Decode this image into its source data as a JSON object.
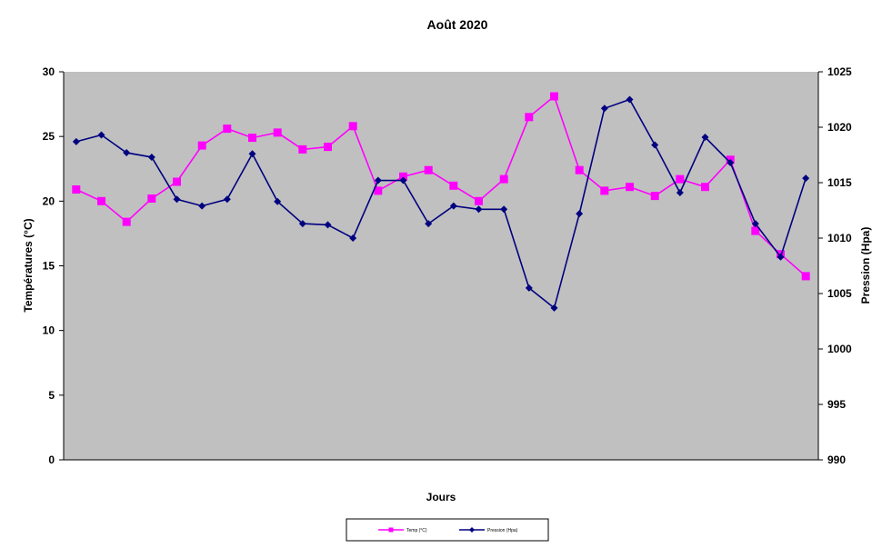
{
  "chart_data": {
    "type": "line",
    "title": "Août 2020",
    "xlabel": "Jours",
    "ylabel_left": "Températures (°C)",
    "ylabel_right": "Pression (Hpa)",
    "ylim_left": [
      0,
      30
    ],
    "ylim_right": [
      990,
      1025
    ],
    "yticks_left": [
      "0",
      "5",
      "10",
      "15",
      "20",
      "25",
      "30"
    ],
    "yticks_right": [
      "990",
      "995",
      "1000",
      "1005",
      "1010",
      "1015",
      "1020",
      "1025"
    ],
    "grid": false,
    "legend_position": "bottom",
    "plot_background": "#c0c0c0",
    "series": [
      {
        "name": "Temp (°C)",
        "axis": "left",
        "color": "#ff00ff",
        "marker": "square",
        "values": [
          20.9,
          20.0,
          18.4,
          20.2,
          21.5,
          24.3,
          25.6,
          24.9,
          25.3,
          24.0,
          24.2,
          25.8,
          20.8,
          21.9,
          22.4,
          21.2,
          20.0,
          21.7,
          26.5,
          28.1,
          22.4,
          20.8,
          21.1,
          20.4,
          21.7,
          21.1,
          23.2,
          17.7,
          15.9,
          14.2
        ]
      },
      {
        "name": "Pression (Hpa)",
        "axis": "right",
        "color": "#000080",
        "marker": "diamond",
        "values": [
          1018.7,
          1019.3,
          1017.7,
          1017.3,
          1013.5,
          1012.9,
          1013.5,
          1017.6,
          1013.3,
          1011.3,
          1011.2,
          1010.0,
          1015.2,
          1015.2,
          1011.3,
          1012.9,
          1012.6,
          1012.6,
          1005.5,
          1003.7,
          1012.2,
          1021.7,
          1022.5,
          1018.4,
          1014.1,
          1019.1,
          1016.8,
          1011.3,
          1008.3,
          1015.4
        ]
      }
    ]
  }
}
